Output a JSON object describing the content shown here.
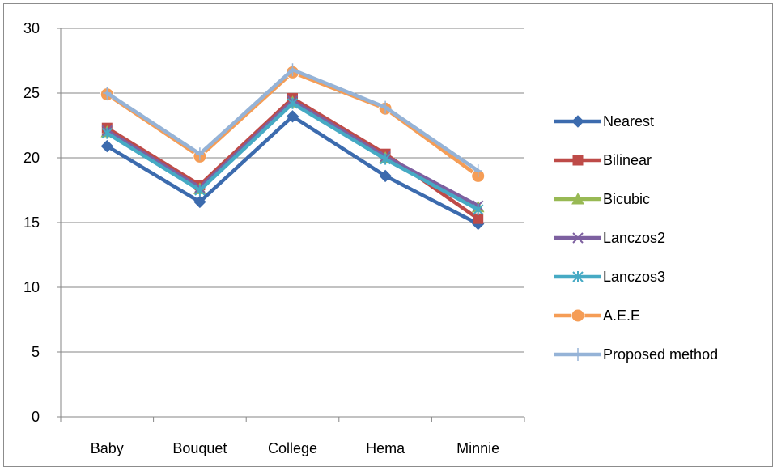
{
  "chart_data": {
    "type": "line",
    "title": "",
    "xlabel": "",
    "ylabel": "",
    "categories": [
      "Baby",
      "Bouquet",
      "College",
      "Hema",
      "Minnie"
    ],
    "ylim": [
      0,
      30
    ],
    "yticks": [
      0,
      5,
      10,
      15,
      20,
      25,
      30
    ],
    "grid": true,
    "legend_position": "right",
    "series": [
      {
        "name": "Nearest",
        "values": [
          20.9,
          16.6,
          23.2,
          18.6,
          14.9
        ],
        "color": "#3C6BAE",
        "marker": "diamond"
      },
      {
        "name": "Bilinear",
        "values": [
          22.3,
          17.9,
          24.6,
          20.3,
          15.3
        ],
        "color": "#BE4B48",
        "marker": "square"
      },
      {
        "name": "Bicubic",
        "values": [
          22.0,
          17.6,
          24.3,
          20.0,
          16.2
        ],
        "color": "#98B954",
        "marker": "triangle"
      },
      {
        "name": "Lanczos2",
        "values": [
          22.1,
          17.7,
          24.4,
          20.1,
          16.3
        ],
        "color": "#7D60A0",
        "marker": "x"
      },
      {
        "name": "Lanczos3",
        "values": [
          21.9,
          17.5,
          24.2,
          19.9,
          16.0
        ],
        "color": "#46AAC4",
        "marker": "star"
      },
      {
        "name": "A.E.E",
        "values": [
          24.9,
          20.1,
          26.6,
          23.8,
          18.6
        ],
        "color": "#F59D56",
        "marker": "circle"
      },
      {
        "name": "Proposed method",
        "values": [
          25.0,
          20.3,
          26.8,
          23.9,
          19.0
        ],
        "color": "#95B3D7",
        "marker": "plus"
      }
    ]
  }
}
